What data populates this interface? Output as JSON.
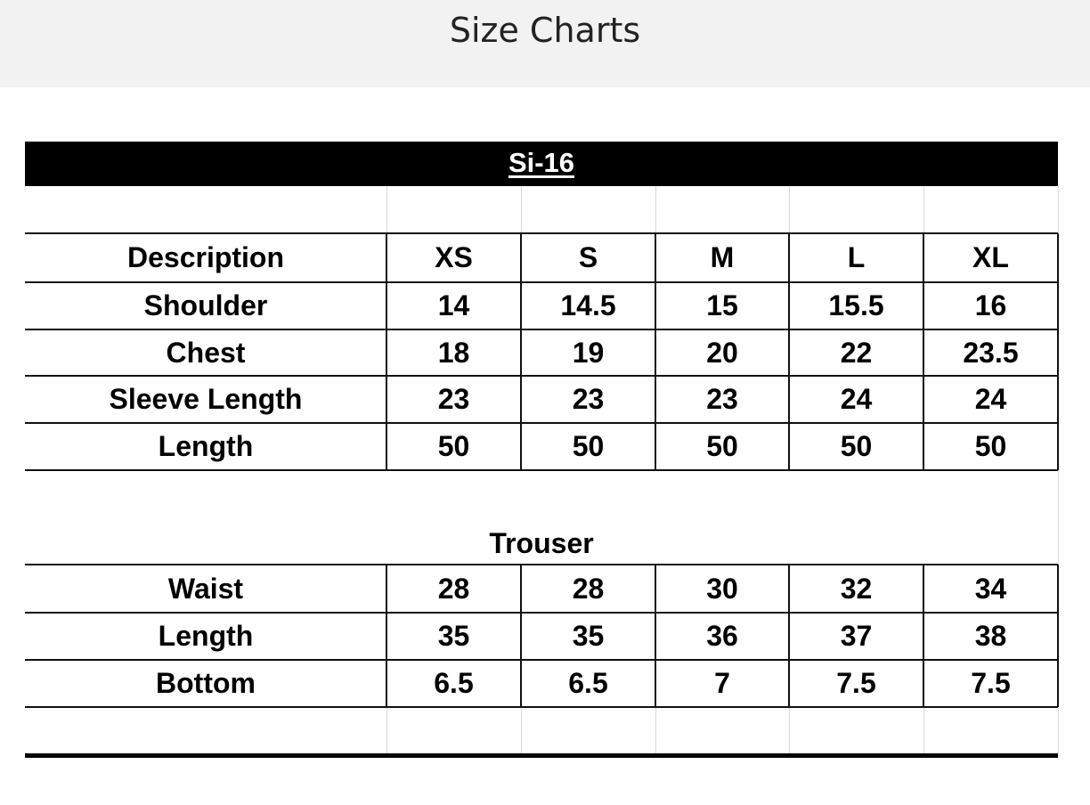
{
  "header": {
    "title": "Size Charts"
  },
  "chart_data": {
    "type": "table",
    "title": "Si-16",
    "columns": [
      "Description",
      "XS",
      "S",
      "M",
      "L",
      "XL"
    ],
    "top_rows": [
      {
        "label": "Shoulder",
        "values": [
          "14",
          "14.5",
          "15",
          "15.5",
          "16"
        ]
      },
      {
        "label": "Chest",
        "values": [
          "18",
          "19",
          "20",
          "22",
          "23.5"
        ]
      },
      {
        "label": "Sleeve Length",
        "values": [
          "23",
          "23",
          "23",
          "24",
          "24"
        ]
      },
      {
        "label": "Length",
        "values": [
          "50",
          "50",
          "50",
          "50",
          "50"
        ]
      }
    ],
    "section_title": "Trouser",
    "bottom_rows": [
      {
        "label": "Waist",
        "values": [
          "28",
          "28",
          "30",
          "32",
          "34"
        ]
      },
      {
        "label": "Length",
        "values": [
          "35",
          "35",
          "36",
          "37",
          "38"
        ]
      },
      {
        "label": "Bottom",
        "values": [
          "6.5",
          "6.5",
          "7",
          "7.5",
          "7.5"
        ]
      }
    ]
  }
}
